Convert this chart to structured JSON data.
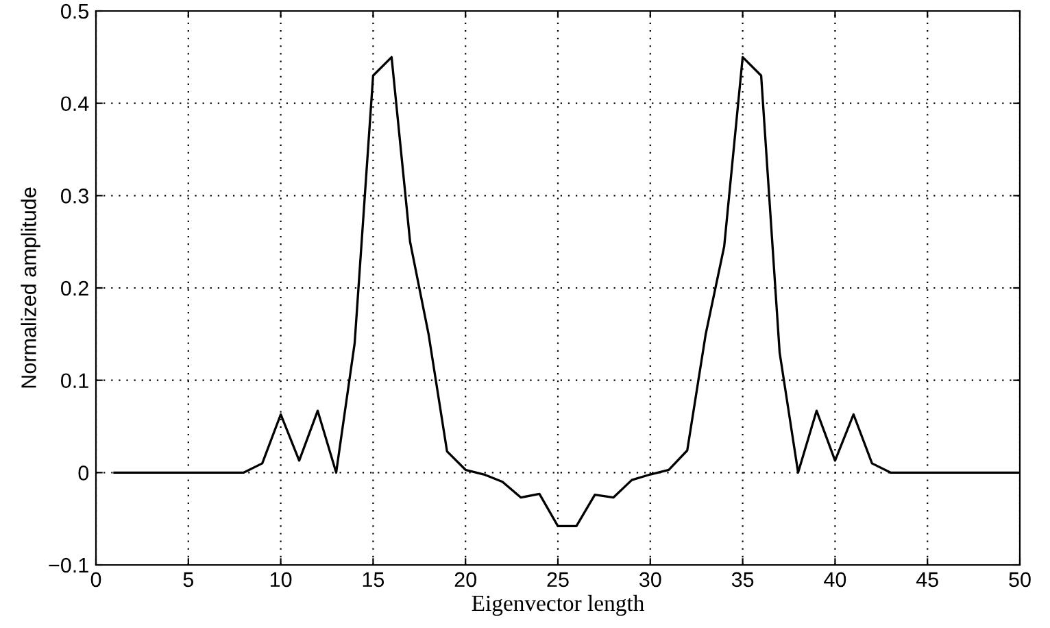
{
  "chart_data": {
    "type": "line",
    "xlabel": "Eigenvector length",
    "ylabel": "Normalized amplitude",
    "x": [
      1,
      2,
      3,
      4,
      5,
      6,
      7,
      8,
      9,
      10,
      11,
      12,
      13,
      14,
      15,
      16,
      17,
      18,
      19,
      20,
      21,
      22,
      23,
      24,
      25,
      26,
      27,
      28,
      29,
      30,
      31,
      32,
      33,
      34,
      35,
      36,
      37,
      38,
      39,
      40,
      41,
      42,
      43,
      44,
      45,
      46,
      47,
      48,
      49,
      50
    ],
    "series": [
      {
        "color": "#000000",
        "values": [
          0,
          0,
          0,
          0,
          0,
          0,
          0,
          0,
          0.01,
          0.063,
          0.013,
          0.067,
          0,
          0.14,
          0.43,
          0.45,
          0.25,
          0.15,
          0.023,
          0.003,
          -0.002,
          -0.01,
          -0.027,
          -0.023,
          -0.058,
          -0.058,
          -0.024,
          -0.027,
          -0.008,
          -0.002,
          0.003,
          0.024,
          0.15,
          0.245,
          0.45,
          0.43,
          0.13,
          0,
          0.067,
          0.013,
          0.063,
          0.01,
          0,
          0,
          0,
          0,
          0,
          0,
          0,
          0
        ]
      }
    ],
    "xlim": [
      0,
      50
    ],
    "xticks": [
      0,
      5,
      10,
      15,
      20,
      25,
      30,
      35,
      40,
      45,
      50
    ],
    "ylim": [
      -0.1,
      0.5
    ],
    "yticks": [
      {
        "value": -0.1,
        "label": "−0.1"
      },
      0,
      0.1,
      0.2,
      0.3,
      0.4,
      0.5
    ],
    "grid": true,
    "line_style": "solid",
    "marker": "none"
  }
}
